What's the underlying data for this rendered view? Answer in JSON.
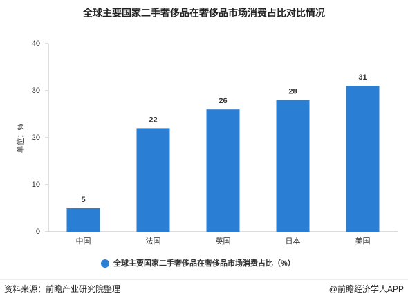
{
  "chart_data": {
    "type": "bar",
    "title": "全球主要国家二手奢侈品在奢侈品市场消费占比对比情况",
    "y_label": "单位：%",
    "categories": [
      "中国",
      "法国",
      "英国",
      "日本",
      "美国"
    ],
    "series": [
      {
        "name": "全球主要国家二手奢侈品在奢侈品市场消费占比（%）",
        "color": "#2a7fd4",
        "values": [
          5,
          22,
          26,
          28,
          31
        ]
      }
    ],
    "ylim": [
      0,
      40
    ],
    "yticks": [
      0,
      10,
      20,
      30,
      40
    ],
    "grid": false,
    "source": "资料来源：前瞻产业研究院整理",
    "credit": "@前瞻经济学人APP"
  }
}
